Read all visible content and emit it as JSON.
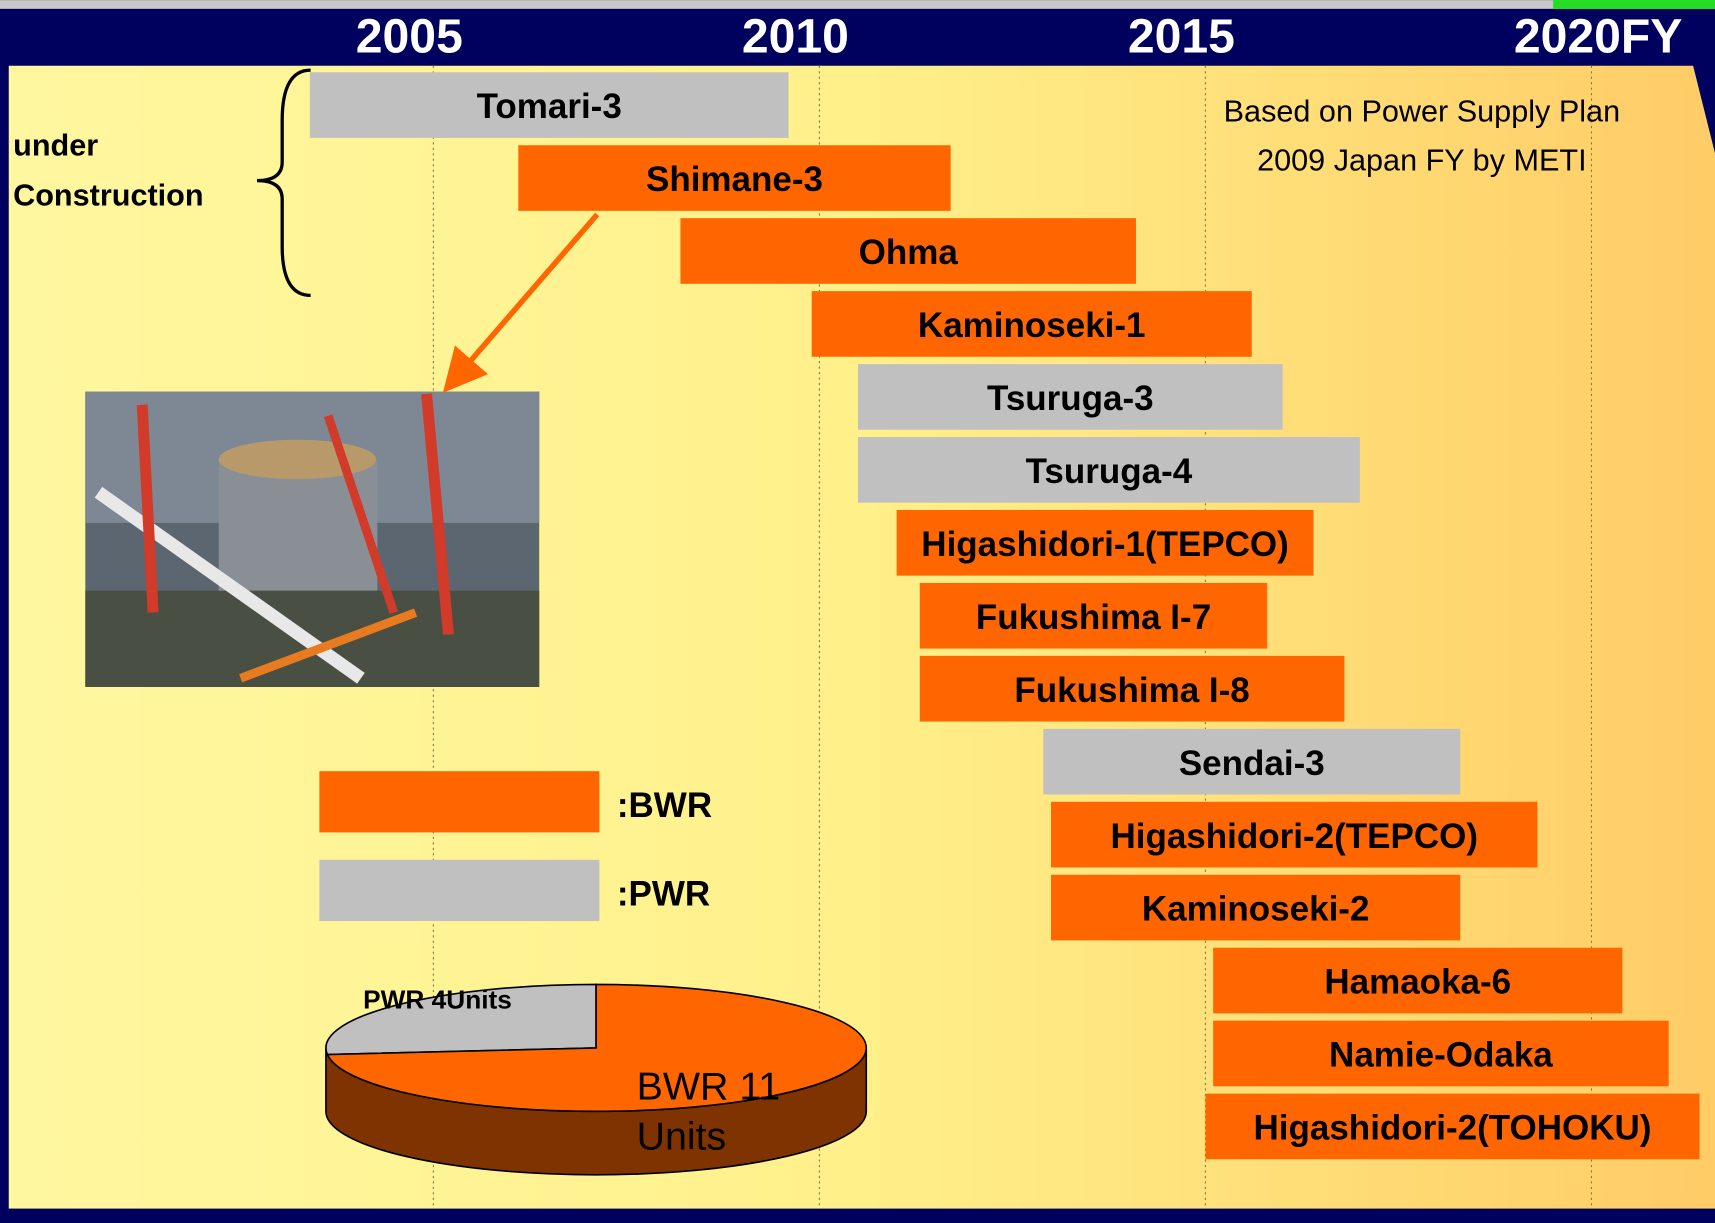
{
  "chart_data": {
    "type": "gantt",
    "xticks": [
      2005,
      2010,
      2015,
      2020
    ],
    "xlim": [
      1999.5,
      2021.6
    ],
    "xlabel": "FY",
    "grid": true,
    "note": [
      "Based on Power Supply Plan",
      "2009 Japan FY by METI"
    ],
    "group_label": [
      "under",
      "Construction"
    ],
    "tasks": [
      {
        "name": "Tomari-3",
        "start": 2003.4,
        "end": 2009.6,
        "color": "#c0c0c0"
      },
      {
        "name": "Shimane-3",
        "start": 2006.1,
        "end": 2011.7,
        "color": "#ff6600"
      },
      {
        "name": "Ohma",
        "start": 2008.2,
        "end": 2014.1,
        "color": "#ff6600"
      },
      {
        "name": "Kaminoseki-1",
        "start": 2009.9,
        "end": 2015.6,
        "color": "#ff6600"
      },
      {
        "name": "Tsuruga-3",
        "start": 2010.5,
        "end": 2016.0,
        "color": "#c0c0c0"
      },
      {
        "name": "Tsuruga-4",
        "start": 2010.5,
        "end": 2017.0,
        "color": "#c0c0c0"
      },
      {
        "name": "Higashidori-1(TEPCO)",
        "start": 2011.0,
        "end": 2016.4,
        "color": "#ff6600"
      },
      {
        "name": "Fukushima I-7",
        "start": 2011.3,
        "end": 2015.8,
        "color": "#ff6600"
      },
      {
        "name": "Fukushima I-8",
        "start": 2011.3,
        "end": 2016.8,
        "color": "#ff6600"
      },
      {
        "name": "Sendai-3",
        "start": 2012.9,
        "end": 2018.3,
        "color": "#c0c0c0"
      },
      {
        "name": "Higashidori-2(TEPCO)",
        "start": 2013.0,
        "end": 2019.3,
        "color": "#ff6600"
      },
      {
        "name": "Kaminoseki-2",
        "start": 2013.0,
        "end": 2018.3,
        "color": "#ff6600"
      },
      {
        "name": "Hamaoka-6",
        "start": 2015.1,
        "end": 2020.4,
        "color": "#ff6600"
      },
      {
        "name": "Namie-Odaka",
        "start": 2015.1,
        "end": 2021.0,
        "color": "#ff6600"
      },
      {
        "name": "Higashidori-2(TOHOKU)",
        "start": 2015.0,
        "end": 2021.4,
        "color": "#ff6600"
      }
    ],
    "legend": [
      {
        "label": ":BWR",
        "color": "#ff6600"
      },
      {
        "label": ":PWR",
        "color": "#c0c0c0"
      }
    ],
    "pie": {
      "values": [
        4,
        11
      ],
      "labels": [
        [
          "PWR 4Units"
        ],
        [
          "BWR 11",
          "Units"
        ]
      ],
      "colors": [
        "#c0c0c0",
        "#ff6600"
      ],
      "side_color": "#7f3300"
    }
  }
}
